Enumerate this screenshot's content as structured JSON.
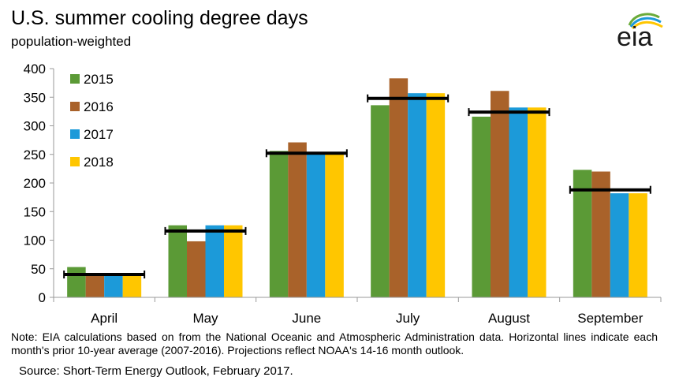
{
  "header": {
    "title": "U.S. summer cooling degree days",
    "subtitle": "population-weighted",
    "logo_text": "eia"
  },
  "footer": {
    "note": "Note: EIA calculations based on from the National Oceanic and Atmospheric Administration data. Horizontal lines indicate each month's prior 10-year average (2007-2016). Projections reflect NOAA's 14-16 month outlook.",
    "source": "Source: Short-Term Energy Outlook, February 2017."
  },
  "colors": {
    "2015": "#5b9a36",
    "2016": "#a9622a",
    "2017": "#1c9ad9",
    "2018": "#ffc600",
    "average_line": "#000000",
    "axis": "#999999"
  },
  "chart_data": {
    "type": "bar",
    "title": "U.S. summer cooling degree days",
    "subtitle": "population-weighted",
    "categories": [
      "April",
      "May",
      "June",
      "July",
      "August",
      "September"
    ],
    "series": [
      {
        "name": "2015",
        "values": [
          53,
          126,
          256,
          336,
          316,
          223
        ]
      },
      {
        "name": "2016",
        "values": [
          41,
          98,
          271,
          383,
          361,
          220
        ]
      },
      {
        "name": "2017",
        "values": [
          40,
          126,
          251,
          357,
          332,
          182
        ]
      },
      {
        "name": "2018",
        "values": [
          40,
          126,
          251,
          357,
          332,
          182
        ]
      }
    ],
    "ten_year_average": [
      40,
      116,
      252,
      348,
      324,
      188
    ],
    "yticks": [
      0,
      50,
      100,
      150,
      200,
      250,
      300,
      350,
      400
    ],
    "ylim": [
      0,
      400
    ],
    "xlabel": "",
    "ylabel": "",
    "grid": false,
    "legend_position": "top-left"
  }
}
